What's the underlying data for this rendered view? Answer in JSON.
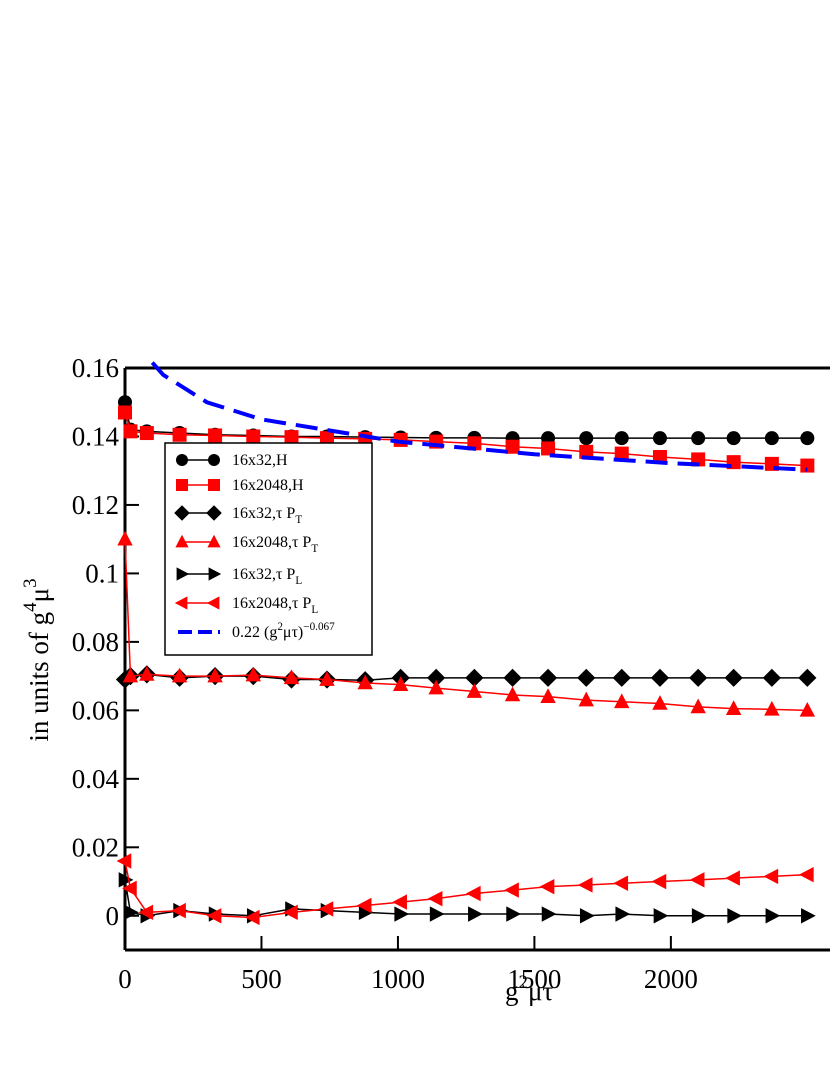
{
  "chart_data": {
    "type": "line",
    "x_label": [
      {
        "text": "g"
      },
      {
        "text": "2",
        "sup": true
      },
      {
        "text": "μτ"
      }
    ],
    "y_label": [
      {
        "text": "in units of g"
      },
      {
        "text": "4",
        "sup": true
      },
      {
        "text": "μ"
      },
      {
        "text": "3",
        "sup": true
      }
    ],
    "x": [
      0,
      20,
      80,
      200,
      330,
      470,
      610,
      740,
      880,
      1010,
      1140,
      1280,
      1420,
      1550,
      1690,
      1820,
      1960,
      2100,
      2230,
      2370,
      2500
    ],
    "series": [
      {
        "name": [
          {
            "text": "16x32,H"
          }
        ],
        "color": "#000000",
        "marker": "circle",
        "values": [
          0.15,
          0.142,
          0.1415,
          0.141,
          0.1405,
          0.1403,
          0.14,
          0.14,
          0.1398,
          0.1397,
          0.1396,
          0.1396,
          0.1395,
          0.1395,
          0.1395,
          0.1395,
          0.1395,
          0.1395,
          0.1395,
          0.1395,
          0.1395
        ]
      },
      {
        "name": [
          {
            "text": "16x2048,H"
          }
        ],
        "color": "#ff0000",
        "marker": "square",
        "values": [
          0.147,
          0.1415,
          0.141,
          0.1405,
          0.1403,
          0.14,
          0.1398,
          0.1395,
          0.1393,
          0.139,
          0.1385,
          0.138,
          0.137,
          0.1365,
          0.1355,
          0.135,
          0.134,
          0.1333,
          0.1325,
          0.132,
          0.1315
        ]
      },
      {
        "name": [
          {
            "text": "16x32,τ P"
          },
          {
            "text": "T",
            "sub": true
          }
        ],
        "color": "#000000",
        "marker": "diamond",
        "values": [
          0.069,
          0.07,
          0.0705,
          0.0695,
          0.07,
          0.07,
          0.069,
          0.069,
          0.0688,
          0.0695,
          0.0695,
          0.0695,
          0.0695,
          0.0695,
          0.0695,
          0.0695,
          0.0695,
          0.0695,
          0.0695,
          0.0695,
          0.0695
        ]
      },
      {
        "name": [
          {
            "text": "16x2048,τ P"
          },
          {
            "text": "T",
            "sub": true
          }
        ],
        "color": "#ff0000",
        "marker": "up",
        "values": [
          0.11,
          0.07,
          0.0705,
          0.07,
          0.07,
          0.0703,
          0.0695,
          0.069,
          0.068,
          0.0675,
          0.0665,
          0.0655,
          0.0645,
          0.064,
          0.063,
          0.0625,
          0.062,
          0.061,
          0.0605,
          0.0603,
          0.06
        ]
      },
      {
        "name": [
          {
            "text": "16x32,τ P"
          },
          {
            "text": "L",
            "sub": true
          }
        ],
        "color": "#000000",
        "marker": "right",
        "values": [
          0.0105,
          0.001,
          0,
          0.0015,
          0.0005,
          0,
          0.002,
          0.0015,
          0.001,
          0.0005,
          0.0005,
          0.0005,
          0.0005,
          0.0005,
          0,
          0.0005,
          0,
          0,
          0,
          0,
          0
        ]
      },
      {
        "name": [
          {
            "text": "16x2048,τ P"
          },
          {
            "text": "L",
            "sub": true
          }
        ],
        "color": "#ff0000",
        "marker": "left",
        "values": [
          0.016,
          0.008,
          0.001,
          0.0015,
          0,
          -0.0005,
          0.001,
          0.002,
          0.003,
          0.004,
          0.005,
          0.0065,
          0.0075,
          0.0085,
          0.009,
          0.0095,
          0.01,
          0.0105,
          0.011,
          0.0115,
          0.012
        ]
      }
    ],
    "fit": {
      "name": [
        {
          "text": "0.22 (g"
        },
        {
          "text": "2",
          "sup": true
        },
        {
          "text": "μτ)"
        },
        {
          "text": "−0.067",
          "sup": true
        }
      ],
      "color": "#0000ff",
      "x": [
        100,
        140,
        300,
        500,
        1000,
        1500,
        2000,
        2500
      ],
      "values": [
        0.1616,
        0.158,
        0.15,
        0.145,
        0.1385,
        0.1348,
        0.1322,
        0.1303
      ]
    },
    "xlim": [
      0,
      2583
    ],
    "ylim": [
      -0.01,
      0.16
    ],
    "xticks": [
      0,
      500,
      1000,
      1500,
      2000
    ],
    "yticks": [
      0,
      0.02,
      0.04,
      0.06,
      0.08,
      0.1,
      0.12,
      0.14,
      0.16
    ]
  }
}
